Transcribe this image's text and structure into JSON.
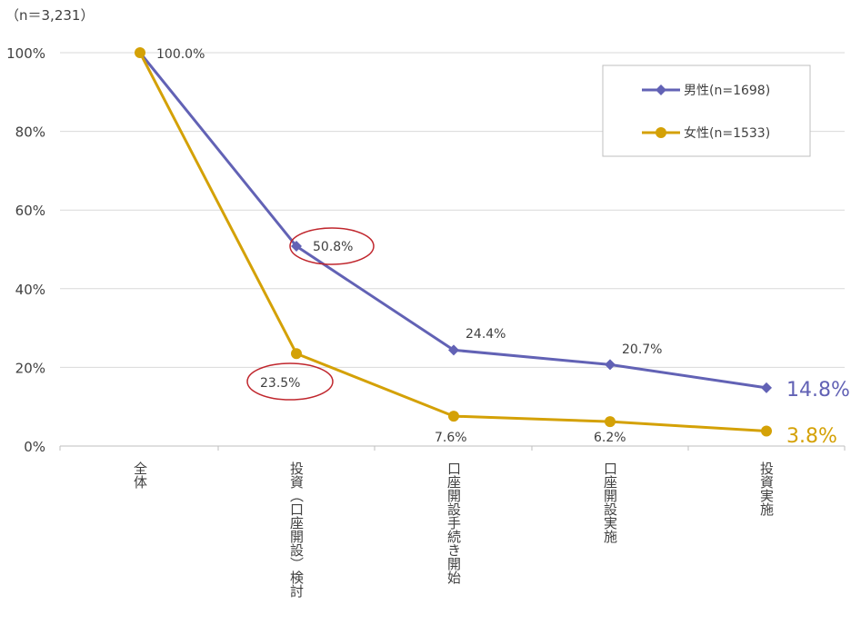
{
  "chart_data": {
    "type": "line",
    "note": "（n＝3,231）",
    "categories": [
      "全体",
      "投資（口座開設）検討",
      "口座開設手続き開始",
      "口座開設実施",
      "投資実施"
    ],
    "ylim": [
      0,
      100
    ],
    "yticks": [
      "0%",
      "20%",
      "40%",
      "60%",
      "80%",
      "100%"
    ],
    "grid": true,
    "legend_position": "top-right",
    "series": [
      {
        "name": "男性(n=1698)",
        "color": "#6262B5",
        "marker": "diamond",
        "values": [
          100.0,
          50.8,
          24.4,
          20.7,
          14.8
        ],
        "labels": [
          "100.0%",
          "50.8%",
          "24.4%",
          "20.7%",
          "14.8%"
        ]
      },
      {
        "name": "女性(n=1533)",
        "color": "#D4A106",
        "marker": "circle",
        "values": [
          100.0,
          23.5,
          7.6,
          6.2,
          3.8
        ],
        "labels": [
          "",
          "23.5%",
          "7.6%",
          "6.2%",
          "3.8%"
        ]
      }
    ],
    "highlight_color": "#C0262D"
  }
}
